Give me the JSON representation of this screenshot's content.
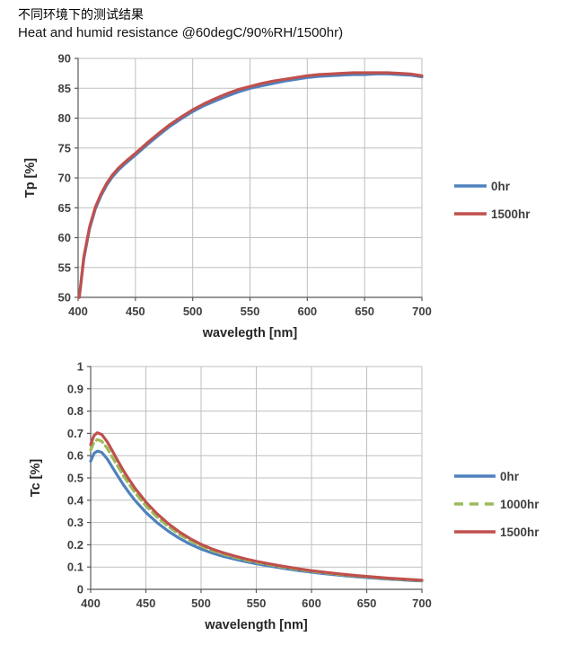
{
  "page": {
    "title_cn": "不同环境下的测试结果",
    "title_en": "Heat and humid resistance @60degC/90%RH/1500hr)"
  },
  "colors": {
    "series_blue": "#4F81BD",
    "series_red": "#C0504D",
    "series_green": "#9BBB59",
    "gridline": "#BFBFBF",
    "axis": "#595959",
    "tick_text": "#3F3F3F"
  },
  "chart_data": [
    {
      "type": "line",
      "title": "",
      "xlabel": "wavelegth [nm]",
      "ylabel": "Tp [%]",
      "xlim": [
        400,
        700
      ],
      "ylim": [
        50,
        90
      ],
      "xticks": [
        400,
        450,
        500,
        550,
        600,
        650,
        700
      ],
      "yticks": [
        50,
        55,
        60,
        65,
        70,
        75,
        80,
        85,
        90
      ],
      "grid": true,
      "legend_position": "right",
      "x": [
        401,
        405,
        410,
        415,
        420,
        425,
        430,
        435,
        440,
        450,
        460,
        470,
        480,
        490,
        500,
        510,
        520,
        530,
        540,
        550,
        560,
        570,
        580,
        590,
        600,
        610,
        620,
        630,
        640,
        650,
        660,
        670,
        680,
        690,
        700
      ],
      "series": [
        {
          "name": "0hr",
          "color": "#4F81BD",
          "style": "solid",
          "values": [
            50.0,
            56.5,
            61.5,
            64.8,
            67.0,
            68.8,
            70.2,
            71.3,
            72.2,
            73.8,
            75.5,
            77.1,
            78.6,
            79.9,
            81.1,
            82.1,
            82.9,
            83.7,
            84.4,
            85.0,
            85.4,
            85.8,
            86.2,
            86.5,
            86.8,
            87.0,
            87.1,
            87.2,
            87.3,
            87.3,
            87.4,
            87.4,
            87.3,
            87.2,
            86.9
          ]
        },
        {
          "name": "1500hr",
          "color": "#C0504D",
          "style": "solid",
          "values": [
            50.0,
            56.8,
            61.8,
            65.1,
            67.3,
            69.1,
            70.5,
            71.6,
            72.5,
            74.1,
            75.8,
            77.4,
            78.9,
            80.2,
            81.4,
            82.4,
            83.3,
            84.1,
            84.8,
            85.3,
            85.8,
            86.2,
            86.5,
            86.8,
            87.1,
            87.3,
            87.4,
            87.5,
            87.6,
            87.6,
            87.6,
            87.6,
            87.5,
            87.4,
            87.1
          ]
        }
      ]
    },
    {
      "type": "line",
      "title": "",
      "xlabel": "wavelength [nm]",
      "ylabel": "Tc [%]",
      "xlim": [
        400,
        700
      ],
      "ylim": [
        0,
        1
      ],
      "xticks": [
        400,
        450,
        500,
        550,
        600,
        650,
        700
      ],
      "yticks": [
        0,
        0.1,
        0.2,
        0.3,
        0.4,
        0.5,
        0.6,
        0.7,
        0.8,
        0.9,
        1
      ],
      "grid": true,
      "legend_position": "right",
      "x": [
        400,
        403,
        406,
        410,
        415,
        420,
        425,
        430,
        435,
        440,
        450,
        460,
        470,
        480,
        490,
        500,
        510,
        520,
        530,
        540,
        550,
        560,
        570,
        580,
        590,
        600,
        610,
        620,
        630,
        640,
        650,
        660,
        670,
        680,
        690,
        700
      ],
      "series": [
        {
          "name": "0hr",
          "color": "#4F81BD",
          "style": "solid",
          "values": [
            0.575,
            0.61,
            0.62,
            0.615,
            0.585,
            0.545,
            0.505,
            0.467,
            0.432,
            0.4,
            0.345,
            0.3,
            0.262,
            0.23,
            0.203,
            0.181,
            0.163,
            0.148,
            0.136,
            0.125,
            0.115,
            0.106,
            0.098,
            0.09,
            0.083,
            0.077,
            0.071,
            0.066,
            0.061,
            0.057,
            0.053,
            0.049,
            0.046,
            0.043,
            0.04,
            0.038
          ]
        },
        {
          "name": "1000hr",
          "color": "#9BBB59",
          "style": "dashed",
          "values": [
            0.625,
            0.66,
            0.672,
            0.665,
            0.633,
            0.59,
            0.548,
            0.507,
            0.47,
            0.435,
            0.375,
            0.325,
            0.283,
            0.248,
            0.219,
            0.194,
            0.174,
            0.158,
            0.144,
            0.132,
            0.121,
            0.112,
            0.103,
            0.095,
            0.087,
            0.081,
            0.075,
            0.069,
            0.064,
            0.06,
            0.056,
            0.052,
            0.048,
            0.045,
            0.042,
            0.039
          ]
        },
        {
          "name": "1500hr",
          "color": "#C0504D",
          "style": "solid",
          "values": [
            0.65,
            0.69,
            0.703,
            0.695,
            0.662,
            0.618,
            0.573,
            0.53,
            0.491,
            0.455,
            0.392,
            0.34,
            0.296,
            0.259,
            0.228,
            0.202,
            0.181,
            0.164,
            0.15,
            0.137,
            0.126,
            0.116,
            0.107,
            0.099,
            0.091,
            0.084,
            0.078,
            0.072,
            0.067,
            0.062,
            0.058,
            0.054,
            0.05,
            0.047,
            0.044,
            0.041
          ]
        }
      ]
    }
  ]
}
